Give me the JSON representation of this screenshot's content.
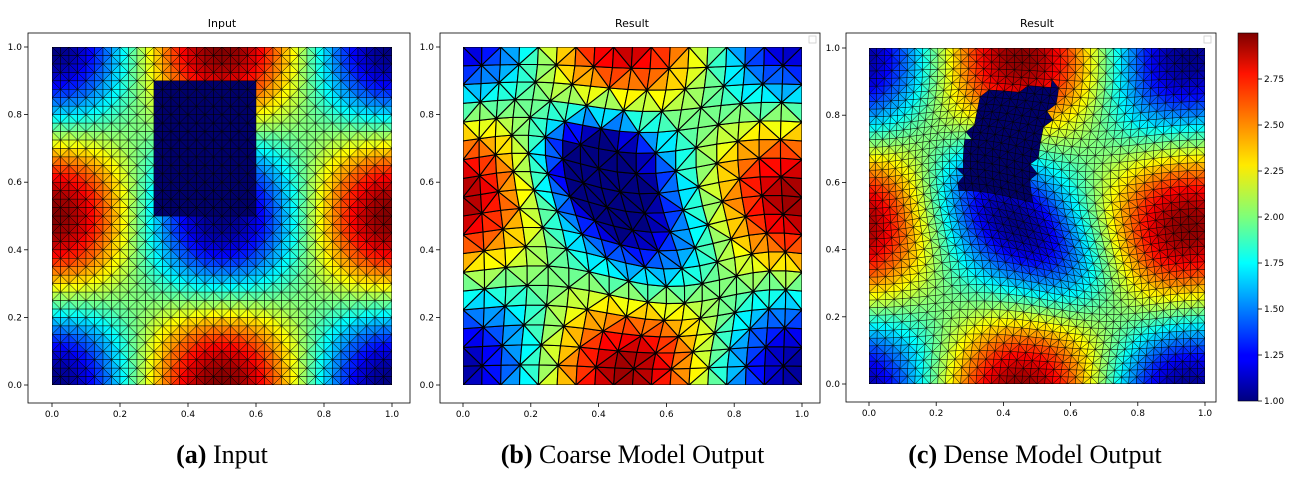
{
  "colors": {
    "frame": "#000000",
    "mesh_line": "#000000"
  },
  "colormap": "jet",
  "captions": [
    {
      "letter": "(a)",
      "text": " Input"
    },
    {
      "letter": "(b)",
      "text": " Coarse Model Output"
    },
    {
      "letter": "(c)",
      "text": " Dense Model Output"
    }
  ],
  "chart_data": [
    {
      "type": "heatmap",
      "subtype": "triangular-mesh",
      "title": "Input",
      "xlim": [
        0,
        1
      ],
      "ylim": [
        0,
        1
      ],
      "xticks": [
        "0.0",
        "0.2",
        "0.4",
        "0.6",
        "0.8",
        "1.0"
      ],
      "yticks": [
        "0.0",
        "0.2",
        "0.4",
        "0.6",
        "0.8",
        "1.0"
      ],
      "field": "2 - cos(2πx)·cos(2πy) approx, range 1.0–3.0",
      "hole": {
        "x": [
          0.3,
          0.6
        ],
        "y": [
          0.5,
          0.9
        ]
      }
    },
    {
      "type": "heatmap",
      "subtype": "triangular-mesh",
      "title": "Result",
      "xlim": [
        0,
        1
      ],
      "ylim": [
        0,
        1
      ],
      "xticks": [
        "0.0",
        "0.2",
        "0.4",
        "0.6",
        "0.8",
        "1.0"
      ],
      "yticks": [
        "0.0",
        "0.2",
        "0.4",
        "0.6",
        "0.8",
        "1.0"
      ],
      "mesh": "coarse"
    },
    {
      "type": "heatmap",
      "subtype": "triangular-mesh",
      "title": "Result",
      "xlim": [
        0,
        1
      ],
      "ylim": [
        0,
        1
      ],
      "xticks": [
        "0.0",
        "0.2",
        "0.4",
        "0.6",
        "0.8",
        "1.0"
      ],
      "yticks": [
        "0.0",
        "0.2",
        "0.4",
        "0.6",
        "0.8",
        "1.0"
      ],
      "mesh": "dense",
      "hole": {
        "corners": [
          [
            0.35,
            0.85
          ],
          [
            0.57,
            0.9
          ],
          [
            0.52,
            0.55
          ],
          [
            0.3,
            0.55
          ]
        ]
      }
    },
    {
      "type": "colorbar",
      "range": [
        1.0,
        3.0
      ],
      "ticks": [
        "1.00",
        "1.25",
        "1.50",
        "1.75",
        "2.00",
        "2.25",
        "2.50",
        "2.75"
      ]
    }
  ]
}
